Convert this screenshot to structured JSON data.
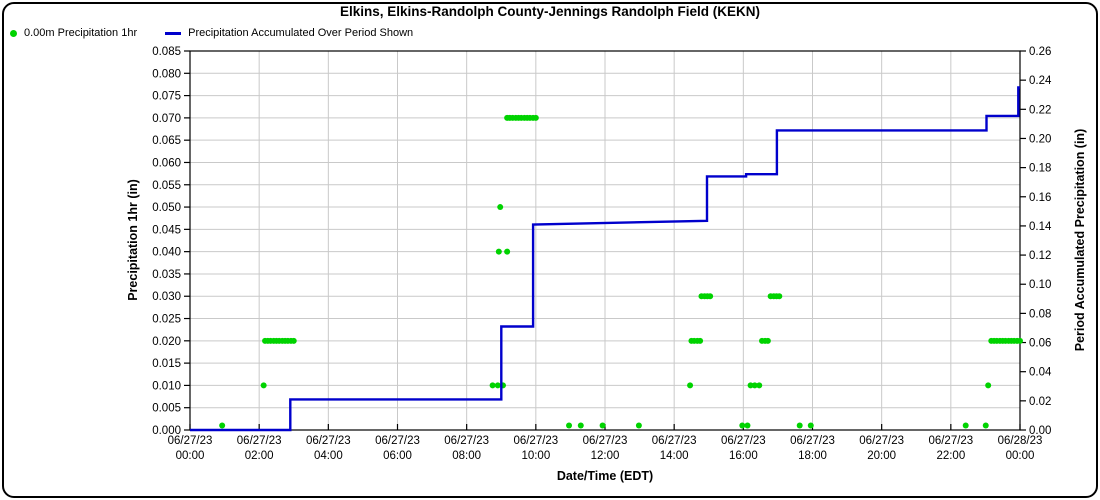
{
  "title": "Elkins, Elkins-Randolph County-Jennings Randolph Field (KEKN)",
  "legend": {
    "precip_1hr_label": "0.00m Precipitation 1hr",
    "accumulated_label": "Precipitation Accumulated Over Period Shown"
  },
  "colors": {
    "dot_green": "#00d300",
    "line_blue": "#0000cc",
    "grid": "#c9c9c9",
    "axis": "#000000",
    "background": "#ffffff"
  },
  "chart_data": {
    "type": "line",
    "title": "Elkins, Elkins-Randolph County-Jennings Randolph Field (KEKN)",
    "xlabel": "Date/Time (EDT)",
    "ylabel_left": "Precipitation 1hr (in)",
    "ylabel_right": "Period Accumulated Precipitation (in)",
    "grid": true,
    "x_axis": {
      "start_hour": 0,
      "end_hour": 24,
      "tick_interval_hours": 2,
      "ticks": [
        {
          "hour": 0,
          "line1": "06/27/23",
          "line2": "00:00"
        },
        {
          "hour": 2,
          "line1": "06/27/23",
          "line2": "02:00"
        },
        {
          "hour": 4,
          "line1": "06/27/23",
          "line2": "04:00"
        },
        {
          "hour": 6,
          "line1": "06/27/23",
          "line2": "06:00"
        },
        {
          "hour": 8,
          "line1": "06/27/23",
          "line2": "08:00"
        },
        {
          "hour": 10,
          "line1": "06/27/23",
          "line2": "10:00"
        },
        {
          "hour": 12,
          "line1": "06/27/23",
          "line2": "12:00"
        },
        {
          "hour": 14,
          "line1": "06/27/23",
          "line2": "14:00"
        },
        {
          "hour": 16,
          "line1": "06/27/23",
          "line2": "16:00"
        },
        {
          "hour": 18,
          "line1": "06/27/23",
          "line2": "18:00"
        },
        {
          "hour": 20,
          "line1": "06/27/23",
          "line2": "20:00"
        },
        {
          "hour": 22,
          "line1": "06/27/23",
          "line2": "22:00"
        },
        {
          "hour": 24,
          "line1": "06/28/23",
          "line2": "00:00"
        }
      ]
    },
    "y_left": {
      "min": 0,
      "max": 0.085,
      "step": 0.005,
      "labels": [
        "0.000",
        "0.005",
        "0.010",
        "0.015",
        "0.020",
        "0.025",
        "0.030",
        "0.035",
        "0.040",
        "0.045",
        "0.050",
        "0.055",
        "0.060",
        "0.065",
        "0.070",
        "0.075",
        "0.080",
        "0.085"
      ]
    },
    "y_right": {
      "min": 0,
      "max": 0.26,
      "step": 0.02,
      "labels": [
        "0.00",
        "0.02",
        "0.04",
        "0.06",
        "0.08",
        "0.10",
        "0.12",
        "0.14",
        "0.16",
        "0.18",
        "0.20",
        "0.22",
        "0.24",
        "0.26"
      ]
    },
    "series": [
      {
        "name": "Precipitation 1hr",
        "type": "scatter",
        "axis": "left",
        "color": "#00d300",
        "points": [
          [
            0.93,
            0.001
          ],
          [
            2.13,
            0.01
          ],
          [
            2.17,
            0.02
          ],
          [
            2.25,
            0.02
          ],
          [
            2.33,
            0.02
          ],
          [
            2.42,
            0.02
          ],
          [
            2.5,
            0.02
          ],
          [
            2.58,
            0.02
          ],
          [
            2.67,
            0.02
          ],
          [
            2.75,
            0.02
          ],
          [
            2.83,
            0.02
          ],
          [
            2.92,
            0.02
          ],
          [
            3.0,
            0.02
          ],
          [
            8.75,
            0.01
          ],
          [
            8.9,
            0.01
          ],
          [
            9.05,
            0.01
          ],
          [
            8.93,
            0.04
          ],
          [
            9.17,
            0.04
          ],
          [
            8.97,
            0.05
          ],
          [
            9.17,
            0.07
          ],
          [
            9.25,
            0.07
          ],
          [
            9.33,
            0.07
          ],
          [
            9.42,
            0.07
          ],
          [
            9.5,
            0.07
          ],
          [
            9.58,
            0.07
          ],
          [
            9.67,
            0.07
          ],
          [
            9.75,
            0.07
          ],
          [
            9.83,
            0.07
          ],
          [
            9.92,
            0.07
          ],
          [
            10.0,
            0.07
          ],
          [
            10.96,
            0.001
          ],
          [
            11.3,
            0.001
          ],
          [
            11.93,
            0.001
          ],
          [
            12.98,
            0.001
          ],
          [
            14.46,
            0.01
          ],
          [
            14.5,
            0.02
          ],
          [
            14.58,
            0.02
          ],
          [
            14.67,
            0.02
          ],
          [
            14.75,
            0.02
          ],
          [
            14.79,
            0.03
          ],
          [
            14.88,
            0.03
          ],
          [
            14.96,
            0.03
          ],
          [
            15.04,
            0.03
          ],
          [
            15.97,
            0.001
          ],
          [
            16.12,
            0.001
          ],
          [
            16.21,
            0.01
          ],
          [
            16.33,
            0.01
          ],
          [
            16.46,
            0.01
          ],
          [
            16.54,
            0.02
          ],
          [
            16.63,
            0.02
          ],
          [
            16.71,
            0.02
          ],
          [
            16.79,
            0.03
          ],
          [
            16.88,
            0.03
          ],
          [
            16.96,
            0.03
          ],
          [
            17.04,
            0.03
          ],
          [
            17.63,
            0.001
          ],
          [
            17.95,
            0.001
          ],
          [
            22.43,
            0.001
          ],
          [
            23.01,
            0.001
          ],
          [
            23.08,
            0.01
          ],
          [
            23.17,
            0.02
          ],
          [
            23.25,
            0.02
          ],
          [
            23.33,
            0.02
          ],
          [
            23.42,
            0.02
          ],
          [
            23.5,
            0.02
          ],
          [
            23.58,
            0.02
          ],
          [
            23.67,
            0.02
          ],
          [
            23.75,
            0.02
          ],
          [
            23.83,
            0.02
          ],
          [
            23.92,
            0.02
          ],
          [
            24.0,
            0.02
          ]
        ]
      },
      {
        "name": "Precipitation Accumulated Over Period Shown",
        "type": "step-line",
        "axis": "right",
        "color": "#0000cc",
        "points": [
          [
            0,
            0
          ],
          [
            2.9,
            0
          ],
          [
            2.9,
            0.021
          ],
          [
            9.0,
            0.021
          ],
          [
            9.0,
            0.071
          ],
          [
            9.92,
            0.071
          ],
          [
            9.92,
            0.141
          ],
          [
            14.95,
            0.1435
          ],
          [
            14.95,
            0.174
          ],
          [
            16.08,
            0.174
          ],
          [
            16.08,
            0.1755
          ],
          [
            16.97,
            0.1755
          ],
          [
            16.97,
            0.2055
          ],
          [
            23.03,
            0.2055
          ],
          [
            23.03,
            0.2155
          ],
          [
            23.95,
            0.2155
          ],
          [
            23.95,
            0.235
          ],
          [
            24.0,
            0.235
          ]
        ]
      }
    ]
  }
}
